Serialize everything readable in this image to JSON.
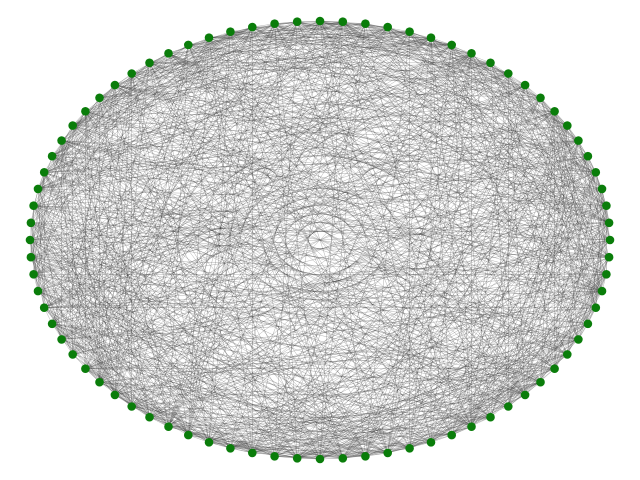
{
  "graph": {
    "layout": "circular",
    "node_count": 80,
    "node_color": "#0a7d0a",
    "edge_color": "#333333",
    "background": "#ffffff",
    "edge_seed": 20240517,
    "edges_per_node": 38
  }
}
